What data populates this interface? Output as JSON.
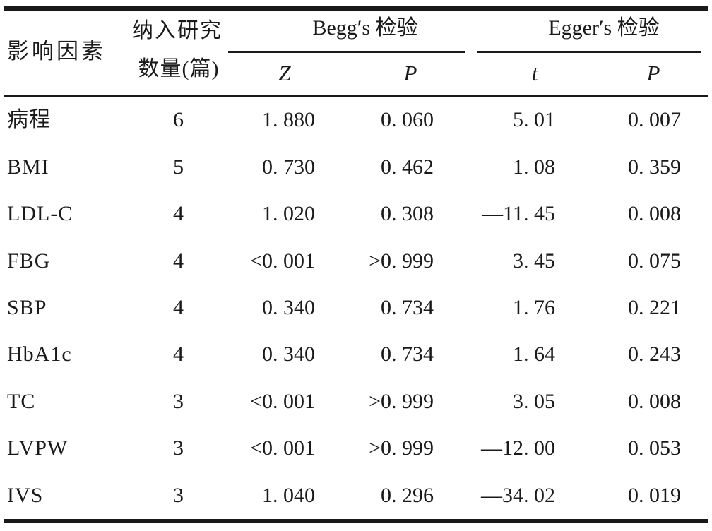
{
  "table": {
    "header": {
      "factor": "影响因素",
      "count_line1": "纳入研究",
      "count_line2": "数量(篇)",
      "begg_group": "Begg′s 检验",
      "egger_group": "Egger′s 检验",
      "begg_z": "Z",
      "begg_p": "P",
      "egger_t": "t",
      "egger_p": "P"
    },
    "rows": [
      {
        "factor": "病程",
        "n": "6",
        "z": "1. 880",
        "p1": "0. 060",
        "t": "5. 01",
        "p2": "0. 007"
      },
      {
        "factor": "BMI",
        "n": "5",
        "z": "0. 730",
        "p1": "0. 462",
        "t": "1. 08",
        "p2": "0. 359"
      },
      {
        "factor": "LDL-C",
        "n": "4",
        "z": "1. 020",
        "p1": "0. 308",
        "t": "—11. 45",
        "p2": "0. 008"
      },
      {
        "factor": "FBG",
        "n": "4",
        "z": "<0. 001",
        "p1": ">0. 999",
        "t": "3. 45",
        "p2": "0. 075"
      },
      {
        "factor": "SBP",
        "n": "4",
        "z": "0. 340",
        "p1": "0. 734",
        "t": "1. 76",
        "p2": "0. 221"
      },
      {
        "factor": "HbA1c",
        "n": "4",
        "z": "0. 340",
        "p1": "0. 734",
        "t": "1. 64",
        "p2": "0. 243"
      },
      {
        "factor": "TC",
        "n": "3",
        "z": "<0. 001",
        "p1": ">0. 999",
        "t": "3. 05",
        "p2": "0. 008"
      },
      {
        "factor": "LVPW",
        "n": "3",
        "z": "<0. 001",
        "p1": ">0. 999",
        "t": "—12. 00",
        "p2": "0. 053"
      },
      {
        "factor": "IVS",
        "n": "3",
        "z": "1. 040",
        "p1": "0. 296",
        "t": "—34. 02",
        "p2": "0. 019"
      }
    ]
  }
}
